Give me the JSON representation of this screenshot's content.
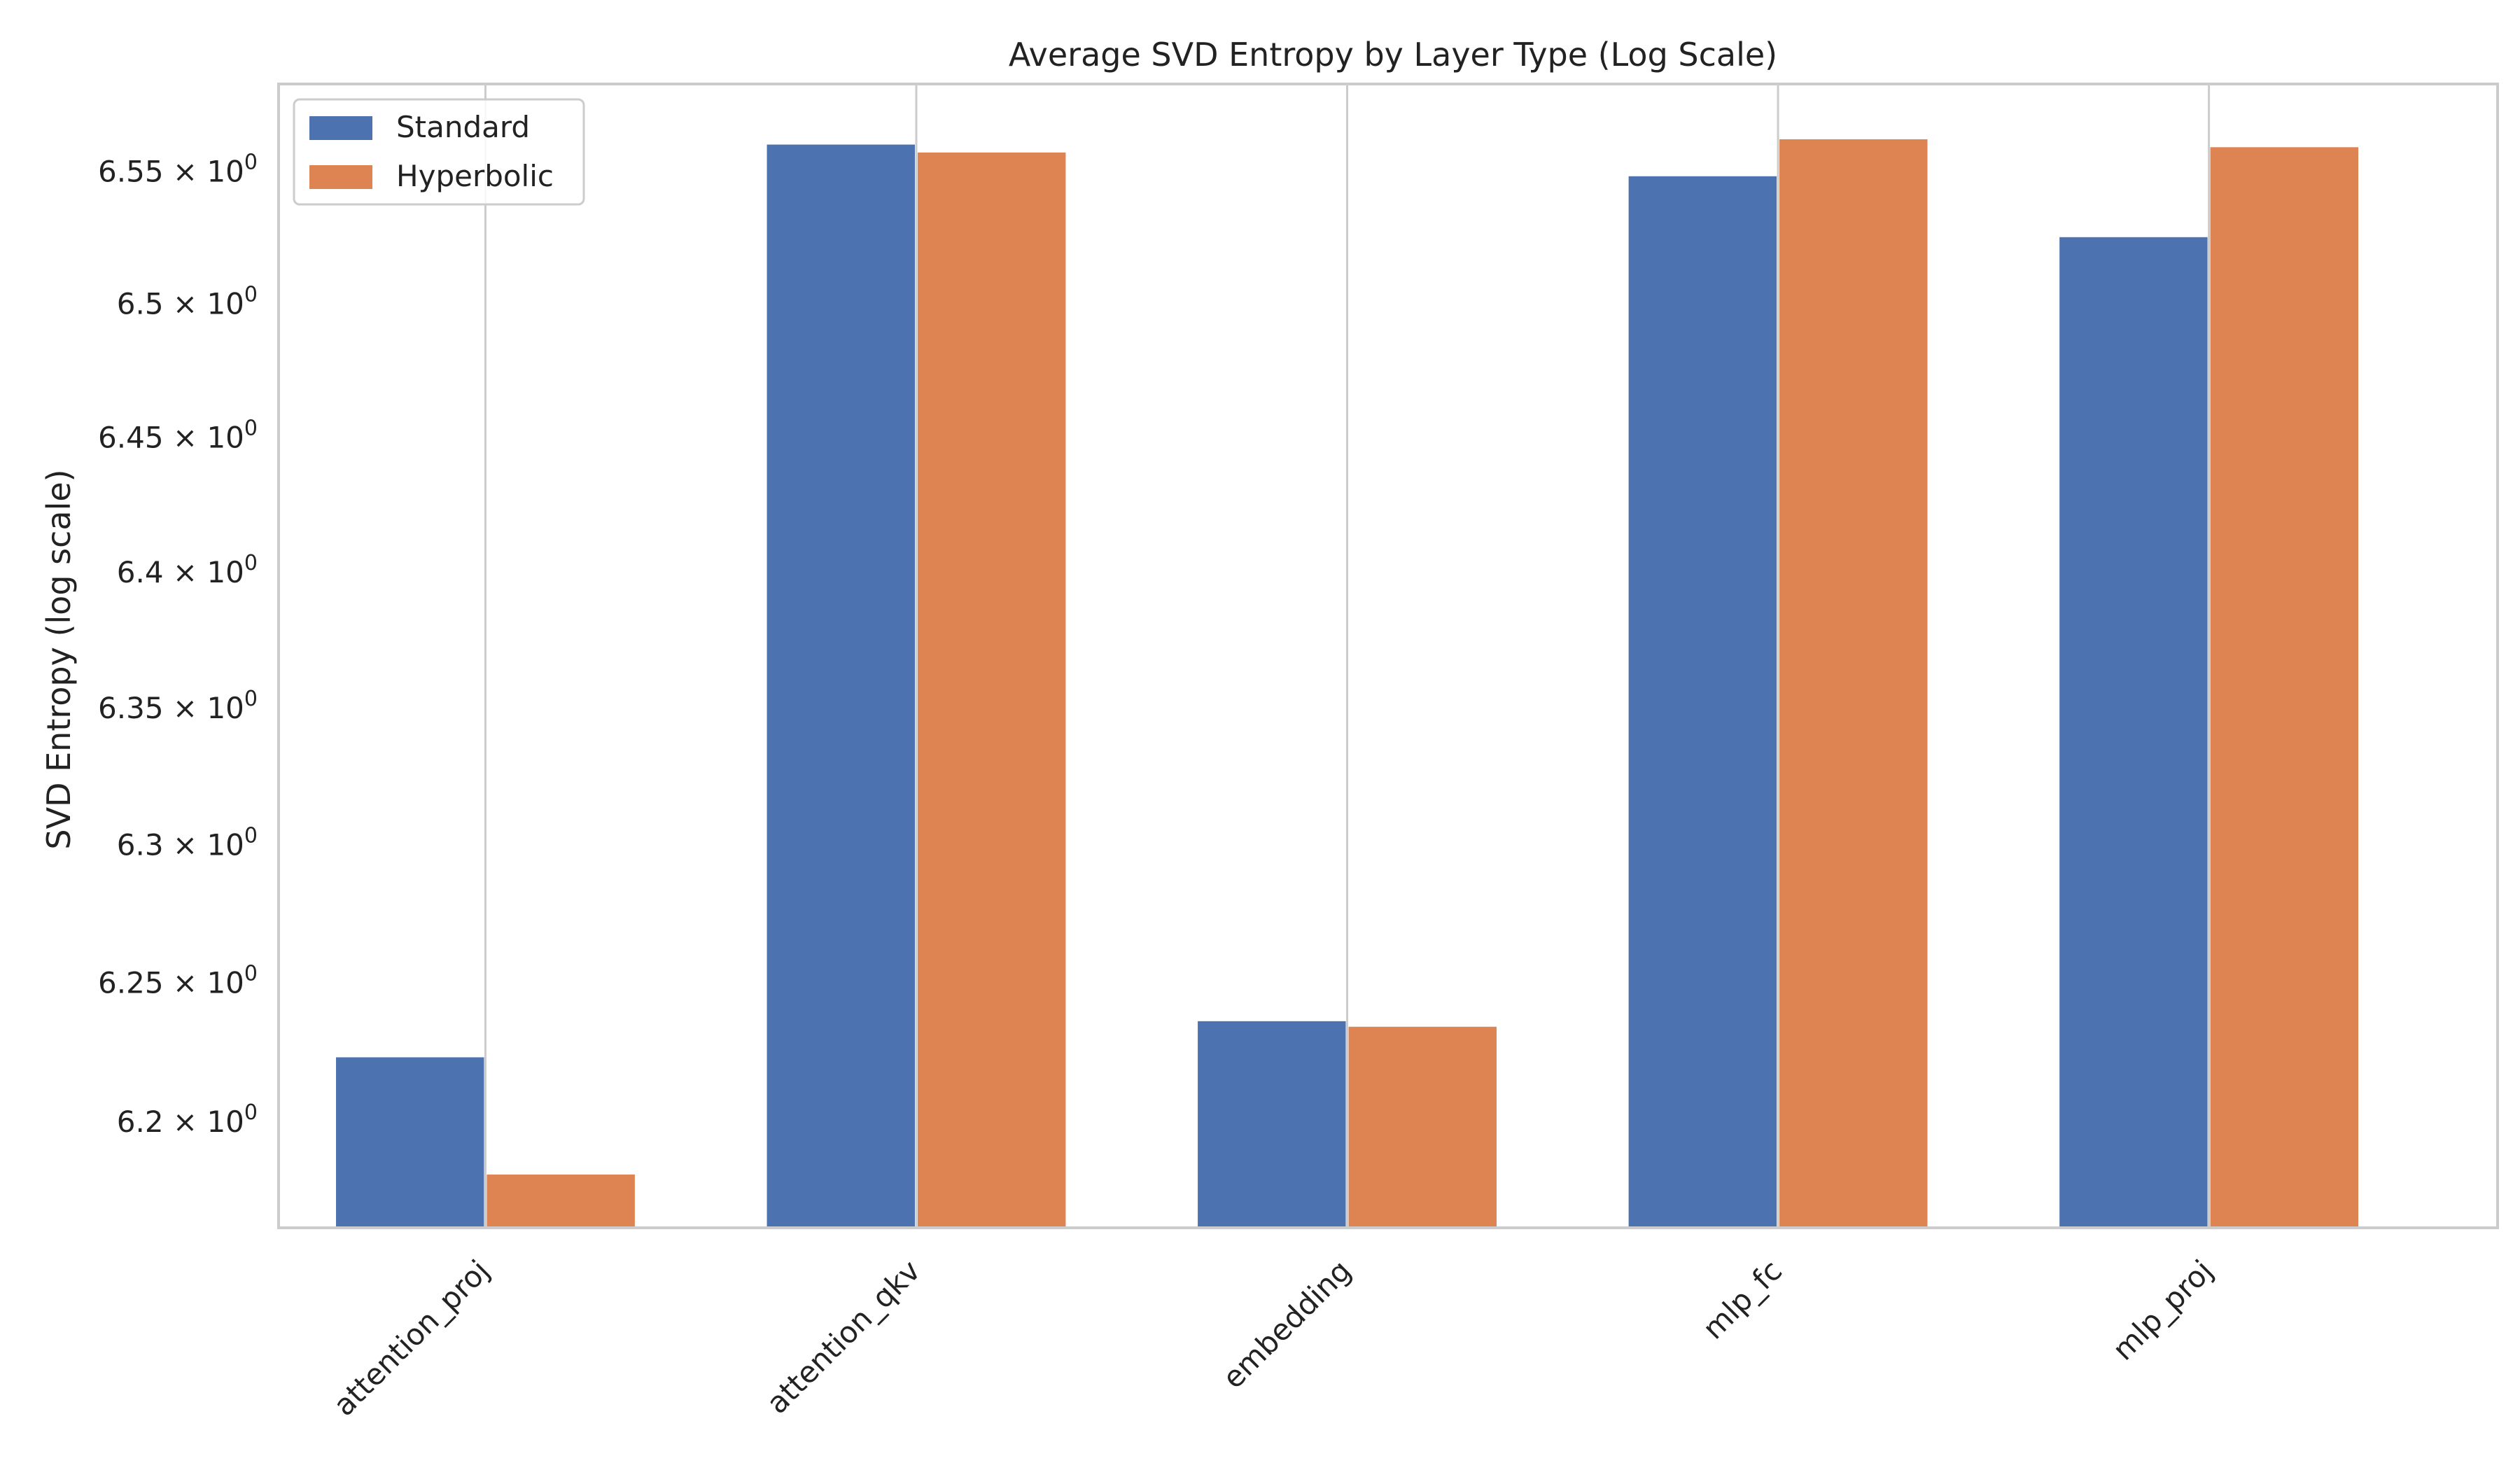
{
  "chart_data": {
    "type": "bar",
    "title": "Average SVD Entropy by Layer Type (Log Scale)",
    "xlabel": "",
    "ylabel": "SVD Entropy (log scale)",
    "yscale": "log",
    "ylim": [
      6.162,
      6.583
    ],
    "grid": "vertical",
    "legend_position": "top-left",
    "categories": [
      "attention_proj",
      "attention_qkv",
      "embedding",
      "mlp_fc",
      "mlp_proj"
    ],
    "series": [
      {
        "name": "Standard",
        "color": "#4c72b0",
        "values": [
          6.223,
          6.56,
          6.236,
          6.548,
          6.525
        ]
      },
      {
        "name": "Hyperbolic",
        "color": "#dd8452",
        "values": [
          6.181,
          6.557,
          6.234,
          6.562,
          6.559
        ]
      }
    ],
    "yticks": [
      {
        "value": 6.2,
        "mantissa": "6.2",
        "base": "10",
        "exponent": "0"
      },
      {
        "value": 6.25,
        "mantissa": "6.25",
        "base": "10",
        "exponent": "0"
      },
      {
        "value": 6.3,
        "mantissa": "6.3",
        "base": "10",
        "exponent": "0"
      },
      {
        "value": 6.35,
        "mantissa": "6.35",
        "base": "10",
        "exponent": "0"
      },
      {
        "value": 6.4,
        "mantissa": "6.4",
        "base": "10",
        "exponent": "0"
      },
      {
        "value": 6.45,
        "mantissa": "6.45",
        "base": "10",
        "exponent": "0"
      },
      {
        "value": 6.5,
        "mantissa": "6.5",
        "base": "10",
        "exponent": "0"
      },
      {
        "value": 6.55,
        "mantissa": "6.55",
        "base": "10",
        "exponent": "0"
      }
    ]
  }
}
